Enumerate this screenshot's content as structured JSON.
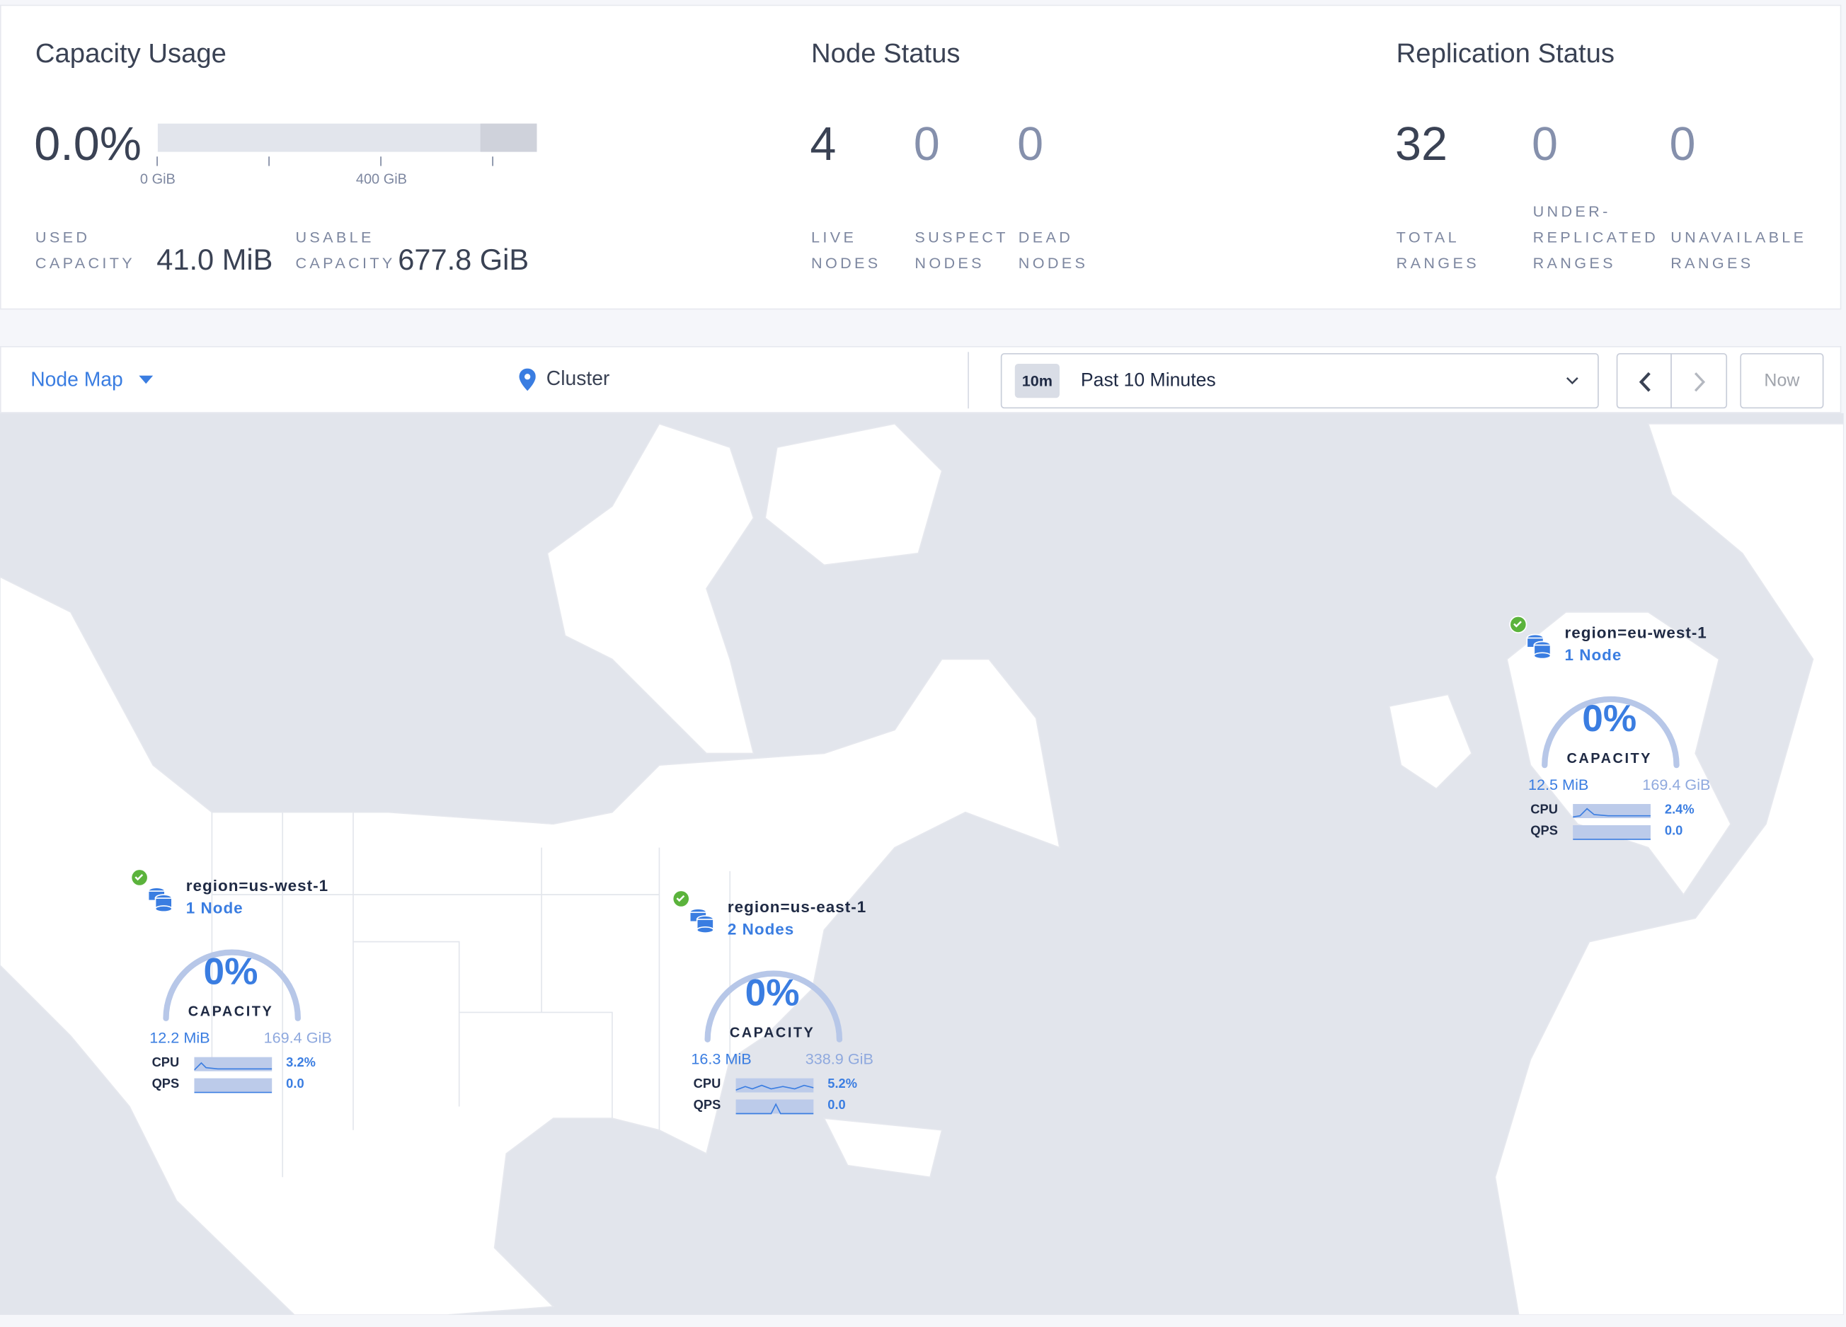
{
  "capacity": {
    "title": "Capacity Usage",
    "percent": "0.0%",
    "bar_used_fraction": 0.0,
    "bar_ticks": [
      "0 GiB",
      "400 GiB"
    ],
    "used_label_1": "USED",
    "used_label_2": "CAPACITY",
    "used_value": "41.0 MiB",
    "usable_label_1": "USABLE",
    "usable_label_2": "CAPACITY",
    "usable_value": "677.8 GiB"
  },
  "node_status": {
    "title": "Node Status",
    "stats": [
      {
        "value": "4",
        "label_1": "LIVE",
        "label_2": "NODES"
      },
      {
        "value": "0",
        "label_1": "SUSPECT",
        "label_2": "NODES"
      },
      {
        "value": "0",
        "label_1": "DEAD",
        "label_2": "NODES"
      }
    ]
  },
  "replication_status": {
    "title": "Replication Status",
    "stats": [
      {
        "value": "32",
        "label_1": "TOTAL",
        "label_2": "RANGES"
      },
      {
        "value": "0",
        "label_0": "UNDER-",
        "label_1": "REPLICATED",
        "label_2": "RANGES"
      },
      {
        "value": "0",
        "label_1": "UNAVAILABLE",
        "label_2": "RANGES"
      }
    ]
  },
  "toolbar": {
    "view_select": "Node Map",
    "breadcrumb": "Cluster",
    "time_badge": "10m",
    "time_range": "Past 10 Minutes",
    "now_label": "Now"
  },
  "colors": {
    "accent": "#3a7de1",
    "healthy": "#5bb33c",
    "text": "#3a4254"
  },
  "clusters": [
    {
      "name": "region=us-west-1",
      "nodes": "1 Node",
      "percent": "0%",
      "capacity_label": "CAPACITY",
      "used": "12.2 MiB",
      "total": "169.4 GiB",
      "cpu_label": "CPU",
      "cpu": "3.2%",
      "qps_label": "QPS",
      "qps": "0.0",
      "status": "healthy"
    },
    {
      "name": "region=us-east-1",
      "nodes": "2 Nodes",
      "percent": "0%",
      "capacity_label": "CAPACITY",
      "used": "16.3 MiB",
      "total": "338.9 GiB",
      "cpu_label": "CPU",
      "cpu": "5.2%",
      "qps_label": "QPS",
      "qps": "0.0",
      "status": "healthy"
    },
    {
      "name": "region=eu-west-1",
      "nodes": "1 Node",
      "percent": "0%",
      "capacity_label": "CAPACITY",
      "used": "12.5 MiB",
      "total": "169.4 GiB",
      "cpu_label": "CPU",
      "cpu": "2.4%",
      "qps_label": "QPS",
      "qps": "0.0",
      "status": "healthy"
    }
  ]
}
